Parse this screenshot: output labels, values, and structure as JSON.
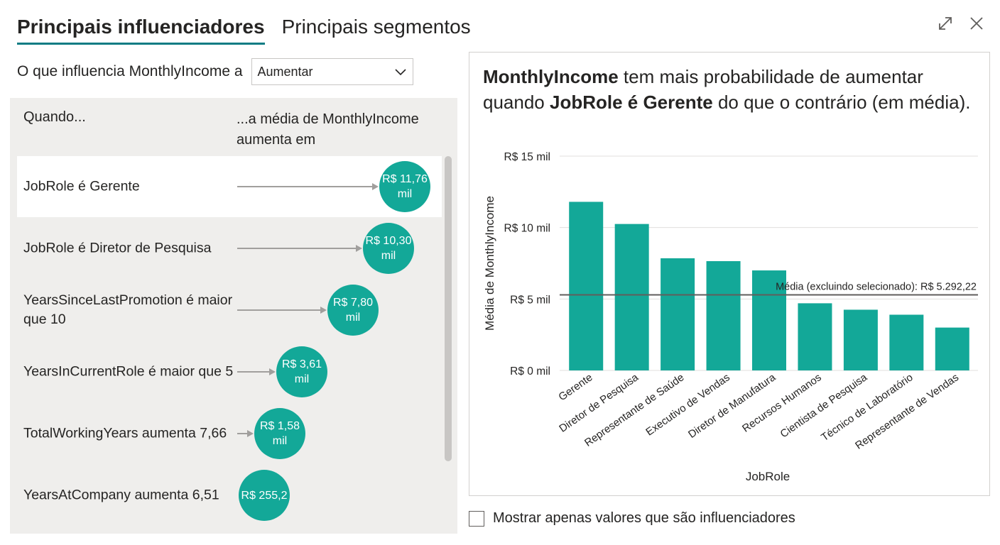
{
  "tabs": {
    "active": "Principais influenciadores",
    "inactive": "Principais segmentos"
  },
  "window_icons": [
    "expand-icon",
    "close-icon"
  ],
  "question": {
    "label": "O que influencia MonthlyIncome a",
    "dropdown_value": "Aumentar"
  },
  "list": {
    "col_when": "Quando...",
    "col_avg": "...a média de MonthlyIncome aumenta em",
    "rows": [
      {
        "label": "JobRole é Gerente",
        "value_line1": "R$ 11,76",
        "value_line2": "mil",
        "value": 11.76,
        "selected": true
      },
      {
        "label": "JobRole é Diretor de Pesquisa",
        "value_line1": "R$ 10,30",
        "value_line2": "mil",
        "value": 10.3,
        "selected": false
      },
      {
        "label": "YearsSinceLastPromotion é maior que 10",
        "value_line1": "R$ 7,80",
        "value_line2": "mil",
        "value": 7.8,
        "selected": false
      },
      {
        "label": "YearsInCurrentRole é maior que 5",
        "value_line1": "R$ 3,61",
        "value_line2": "mil",
        "value": 3.61,
        "selected": false
      },
      {
        "label": "TotalWorkingYears aumenta 7,66",
        "value_line1": "R$ 1,58",
        "value_line2": "mil",
        "value": 1.58,
        "selected": false
      },
      {
        "label": "YearsAtCompany aumenta 6,51",
        "value_line1": "R$ 255,2",
        "value_line2": "",
        "value": 0.2552,
        "selected": false
      }
    ]
  },
  "detail": {
    "headline_bold1": "MonthlyIncome",
    "headline_text1": " tem mais probabilidade de aumentar quando ",
    "headline_bold2": "JobRole é Gerente",
    "headline_text2": " do que o contrário (em média)."
  },
  "chart_data": {
    "type": "bar",
    "categories": [
      "Gerente",
      "Diretor de Pesquisa",
      "Representante de Saúde",
      "Executivo de Vendas",
      "Diretor de Manufatura",
      "Recursos Humanos",
      "Cientista de Pesquisa",
      "Técnico de Laboratório",
      "Representante de Vendas"
    ],
    "values": [
      11.8,
      10.25,
      7.85,
      7.65,
      7.0,
      4.7,
      4.25,
      3.9,
      3.0
    ],
    "ylabel": "Média de MonthlyIncome",
    "xlabel": "JobRole",
    "ylim": [
      0,
      15
    ],
    "yticks": [
      0,
      5,
      10,
      15
    ],
    "ytick_labels": [
      "R$ 0 mil",
      "R$ 5 mil",
      "R$ 10 mil",
      "R$ 15 mil"
    ],
    "reference_line": {
      "value": 5.29222,
      "label": "Média (excluindo selecionado): R$ 5.292,22"
    },
    "bar_color": "#13a898",
    "grid": true
  },
  "footer": {
    "show_only_label": "Mostrar apenas valores que são influenciadores"
  },
  "colors": {
    "accent": "#13a898",
    "tab_underline": "#0c7c84",
    "panel_bg": "#efeeec"
  }
}
